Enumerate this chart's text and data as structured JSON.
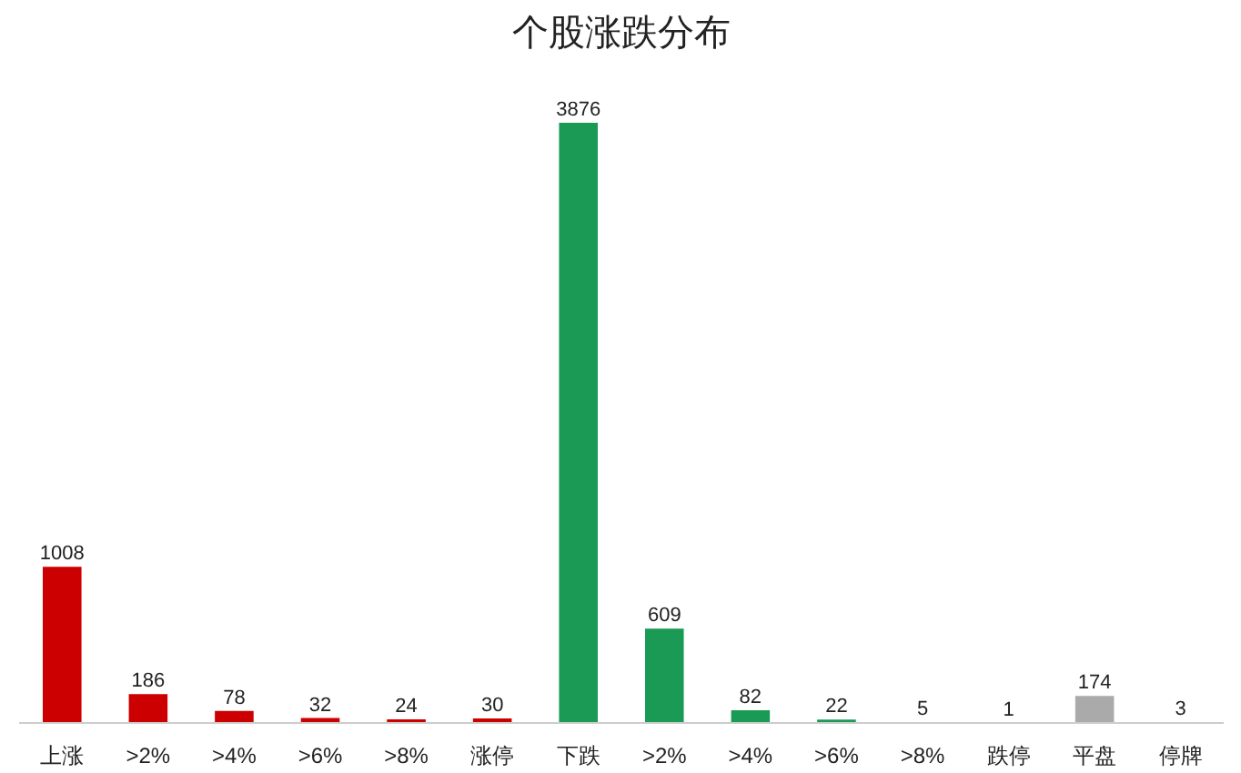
{
  "chart_data": {
    "type": "bar",
    "title": "个股涨跌分布",
    "categories": [
      "上涨",
      ">2%",
      ">4%",
      ">6%",
      ">8%",
      "涨停",
      "下跌",
      ">2%",
      ">4%",
      ">6%",
      ">8%",
      "跌停",
      "平盘",
      "停牌"
    ],
    "values": [
      1008,
      186,
      78,
      32,
      24,
      30,
      3876,
      609,
      82,
      22,
      5,
      1,
      174,
      3
    ],
    "colors": [
      "#cc0000",
      "#cc0000",
      "#cc0000",
      "#cc0000",
      "#cc0000",
      "#cc0000",
      "#1a9a55",
      "#1a9a55",
      "#1a9a55",
      "#1a9a55",
      "#1a9a55",
      "#1a9a55",
      "#aaaaaa",
      "#555555"
    ],
    "data_labels": true
  }
}
